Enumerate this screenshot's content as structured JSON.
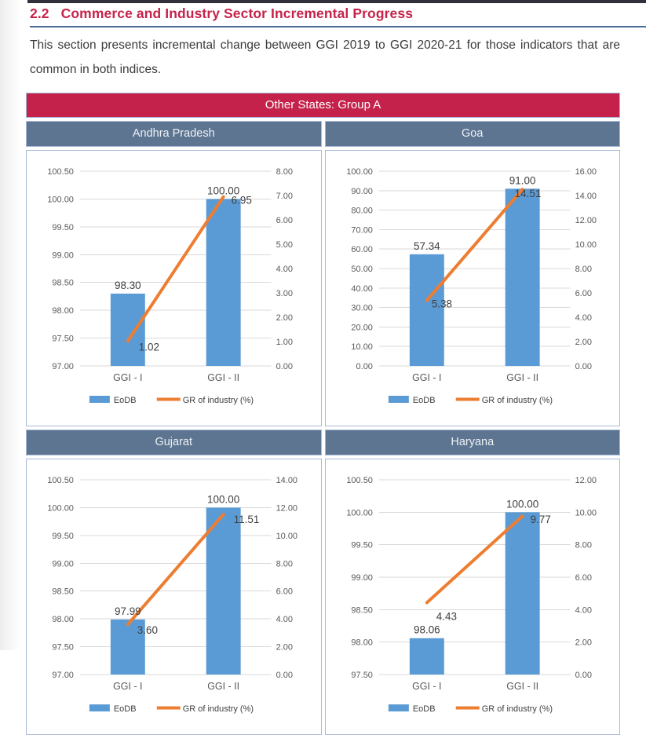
{
  "page": {
    "section_number": "2.2",
    "section_title": "Commerce and Industry Sector Incremental Progress",
    "intro_text": "This section presents incremental change between GGI 2019 to GGI 2020-21 for those indicators that are common in both indices."
  },
  "group_table": {
    "group_title": "Other States: Group A"
  },
  "colors": {
    "accent_crimson": "#c5224b",
    "heading_text": "#c5234b",
    "heading_underline": "#4a6d96",
    "top_rule": "#31313b",
    "state_header_bg": "#5d7591",
    "table_border": "#a7bad8",
    "bar_blue": "#5b9bd5",
    "line_orange": "#ed7d31",
    "gridline": "#d9d9d9",
    "axis_text": "#595959",
    "data_label": "#404040",
    "body_text": "#3b3b3b"
  },
  "chart_data": [
    {
      "type": "bar",
      "state": "Andhra Pradesh",
      "categories": [
        "GGI - I",
        "GGI - II"
      ],
      "series": [
        {
          "name": "EoDB",
          "kind": "bar",
          "axis": "left",
          "values": [
            98.3,
            100.0
          ],
          "labels": [
            "98.30",
            "100.00"
          ]
        },
        {
          "name": "GR of industry (%)",
          "kind": "line",
          "axis": "right",
          "values": [
            1.02,
            6.95
          ],
          "labels": [
            "1.02",
            "6.95"
          ],
          "label_offsets": [
            [
              14,
              12
            ],
            [
              10,
              9
            ]
          ]
        }
      ],
      "left_axis": {
        "min": 97.0,
        "max": 100.5,
        "ticks": [
          "100.50",
          "100.00",
          "99.50",
          "99.00",
          "98.50",
          "98.00",
          "97.50",
          "97.00"
        ]
      },
      "right_axis": {
        "min": 0,
        "max": 8,
        "ticks": [
          "8.00",
          "7.00",
          "6.00",
          "5.00",
          "4.00",
          "3.00",
          "2.00",
          "1.00",
          "0.00"
        ]
      },
      "legend": [
        "EoDB",
        "GR of industry (%)"
      ],
      "legend_position": "bottom",
      "grid": true
    },
    {
      "type": "bar",
      "state": "Goa",
      "categories": [
        "GGI - I",
        "GGI - II"
      ],
      "series": [
        {
          "name": "EoDB",
          "kind": "bar",
          "axis": "left",
          "values": [
            57.34,
            91.0
          ],
          "labels": [
            "57.34",
            "91.00"
          ]
        },
        {
          "name": "GR of industry (%)",
          "kind": "line",
          "axis": "right",
          "values": [
            5.38,
            14.51
          ],
          "labels": [
            "5.38",
            "14.51"
          ],
          "label_offsets": [
            [
              6,
              9
            ],
            [
              -10,
              10
            ]
          ]
        }
      ],
      "left_axis": {
        "min": 0,
        "max": 100,
        "ticks": [
          "100.00",
          "90.00",
          "80.00",
          "70.00",
          "60.00",
          "50.00",
          "40.00",
          "30.00",
          "20.00",
          "10.00",
          "0.00"
        ]
      },
      "right_axis": {
        "min": 0,
        "max": 16,
        "ticks": [
          "16.00",
          "14.00",
          "12.00",
          "10.00",
          "8.00",
          "6.00",
          "4.00",
          "2.00",
          "0.00"
        ]
      },
      "legend": [
        "EoDB",
        "GR of industry (%)"
      ],
      "legend_position": "bottom",
      "grid": true
    },
    {
      "type": "bar",
      "state": "Gujarat",
      "categories": [
        "GGI - I",
        "GGI - II"
      ],
      "series": [
        {
          "name": "EoDB",
          "kind": "bar",
          "axis": "left",
          "values": [
            97.99,
            100.0
          ],
          "labels": [
            "97.99",
            "100.00"
          ]
        },
        {
          "name": "GR of industry (%)",
          "kind": "line",
          "axis": "right",
          "values": [
            3.6,
            11.51
          ],
          "labels": [
            "3.60",
            "11.51"
          ],
          "label_offsets": [
            [
              12,
              12
            ],
            [
              13,
              11
            ]
          ]
        }
      ],
      "left_axis": {
        "min": 97.0,
        "max": 100.5,
        "ticks": [
          "100.50",
          "100.00",
          "99.50",
          "99.00",
          "98.50",
          "98.00",
          "97.50",
          "97.00"
        ]
      },
      "right_axis": {
        "min": 0,
        "max": 14,
        "ticks": [
          "14.00",
          "12.00",
          "10.00",
          "8.00",
          "6.00",
          "4.00",
          "2.00",
          "0.00"
        ]
      },
      "legend": [
        "EoDB",
        "GR of industry (%)"
      ],
      "legend_position": "bottom",
      "grid": true
    },
    {
      "type": "bar",
      "state": "Haryana",
      "categories": [
        "GGI - I",
        "GGI - II"
      ],
      "series": [
        {
          "name": "EoDB",
          "kind": "bar",
          "axis": "left",
          "values": [
            98.06,
            100.0
          ],
          "labels": [
            "98.06",
            "100.00"
          ]
        },
        {
          "name": "GR of industry (%)",
          "kind": "line",
          "axis": "right",
          "values": [
            4.43,
            9.77
          ],
          "labels": [
            "4.43",
            "9.77"
          ],
          "label_offsets": [
            [
              12,
              22
            ],
            [
              10,
              9
            ]
          ]
        }
      ],
      "left_axis": {
        "min": 97.5,
        "max": 100.5,
        "ticks": [
          "100.50",
          "100.00",
          "99.50",
          "99.00",
          "98.50",
          "98.00",
          "97.50"
        ]
      },
      "right_axis": {
        "min": 0,
        "max": 12,
        "ticks": [
          "12.00",
          "10.00",
          "8.00",
          "6.00",
          "4.00",
          "2.00",
          "0.00"
        ]
      },
      "legend": [
        "EoDB",
        "GR of industry (%)"
      ],
      "legend_position": "bottom",
      "grid": true
    }
  ]
}
